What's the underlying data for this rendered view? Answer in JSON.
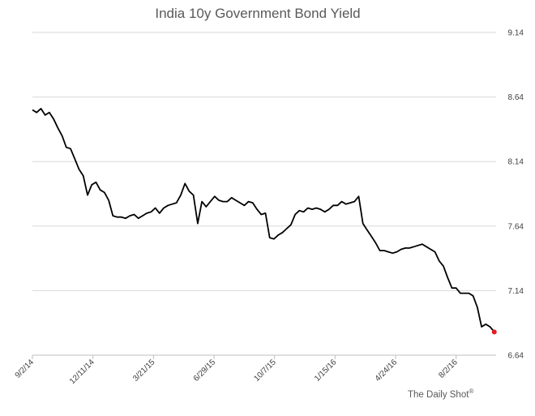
{
  "chart_data": {
    "type": "line",
    "title": "India 10y Government Bond Yield",
    "xlabel": "",
    "ylabel": "",
    "y_ticks": [
      "6.64",
      "7.14",
      "7.64",
      "8.14",
      "8.64",
      "9.14"
    ],
    "ylim": [
      6.64,
      9.14
    ],
    "y_axis_side": "right",
    "x_ticks": [
      "9/2/14",
      "12/11/14",
      "3/21/15",
      "6/29/15",
      "10/7/15",
      "1/15/16",
      "4/24/16",
      "8/2/16"
    ],
    "xlim": [
      "2014-09-02",
      "2016-10-07"
    ],
    "grid": true,
    "legend": "none",
    "series": [
      {
        "color": "#000000",
        "points": [
          [
            "2014-09-02",
            8.54
          ],
          [
            "2014-09-09",
            8.52
          ],
          [
            "2014-09-16",
            8.55
          ],
          [
            "2014-09-23",
            8.5
          ],
          [
            "2014-09-30",
            8.52
          ],
          [
            "2014-10-07",
            8.47
          ],
          [
            "2014-10-14",
            8.4
          ],
          [
            "2014-10-21",
            8.34
          ],
          [
            "2014-10-28",
            8.25
          ],
          [
            "2014-11-04",
            8.24
          ],
          [
            "2014-11-11",
            8.16
          ],
          [
            "2014-11-18",
            8.08
          ],
          [
            "2014-11-25",
            8.03
          ],
          [
            "2014-12-02",
            7.88
          ],
          [
            "2014-12-09",
            7.96
          ],
          [
            "2014-12-16",
            7.98
          ],
          [
            "2014-12-23",
            7.92
          ],
          [
            "2014-12-30",
            7.9
          ],
          [
            "2015-01-06",
            7.84
          ],
          [
            "2015-01-13",
            7.72
          ],
          [
            "2015-01-20",
            7.71
          ],
          [
            "2015-01-27",
            7.71
          ],
          [
            "2015-02-03",
            7.7
          ],
          [
            "2015-02-10",
            7.72
          ],
          [
            "2015-02-17",
            7.73
          ],
          [
            "2015-02-24",
            7.7
          ],
          [
            "2015-03-03",
            7.72
          ],
          [
            "2015-03-10",
            7.74
          ],
          [
            "2015-03-17",
            7.75
          ],
          [
            "2015-03-24",
            7.78
          ],
          [
            "2015-03-31",
            7.74
          ],
          [
            "2015-04-07",
            7.78
          ],
          [
            "2015-04-14",
            7.8
          ],
          [
            "2015-04-21",
            7.81
          ],
          [
            "2015-04-28",
            7.82
          ],
          [
            "2015-05-05",
            7.88
          ],
          [
            "2015-05-12",
            7.97
          ],
          [
            "2015-05-19",
            7.91
          ],
          [
            "2015-05-26",
            7.88
          ],
          [
            "2015-06-02",
            7.66
          ],
          [
            "2015-06-09",
            7.83
          ],
          [
            "2015-06-16",
            7.79
          ],
          [
            "2015-06-23",
            7.83
          ],
          [
            "2015-06-30",
            7.87
          ],
          [
            "2015-07-07",
            7.84
          ],
          [
            "2015-07-14",
            7.83
          ],
          [
            "2015-07-21",
            7.83
          ],
          [
            "2015-07-28",
            7.86
          ],
          [
            "2015-08-04",
            7.84
          ],
          [
            "2015-08-11",
            7.82
          ],
          [
            "2015-08-18",
            7.8
          ],
          [
            "2015-08-25",
            7.83
          ],
          [
            "2015-09-01",
            7.82
          ],
          [
            "2015-09-08",
            7.77
          ],
          [
            "2015-09-15",
            7.73
          ],
          [
            "2015-09-22",
            7.74
          ],
          [
            "2015-09-29",
            7.55
          ],
          [
            "2015-10-06",
            7.54
          ],
          [
            "2015-10-13",
            7.57
          ],
          [
            "2015-10-20",
            7.59
          ],
          [
            "2015-10-27",
            7.62
          ],
          [
            "2015-11-03",
            7.65
          ],
          [
            "2015-11-10",
            7.73
          ],
          [
            "2015-11-17",
            7.76
          ],
          [
            "2015-11-24",
            7.75
          ],
          [
            "2015-12-01",
            7.78
          ],
          [
            "2015-12-08",
            7.77
          ],
          [
            "2015-12-15",
            7.78
          ],
          [
            "2015-12-22",
            7.77
          ],
          [
            "2015-12-29",
            7.75
          ],
          [
            "2016-01-05",
            7.77
          ],
          [
            "2016-01-12",
            7.8
          ],
          [
            "2016-01-19",
            7.8
          ],
          [
            "2016-01-26",
            7.83
          ],
          [
            "2016-02-02",
            7.81
          ],
          [
            "2016-02-09",
            7.82
          ],
          [
            "2016-02-16",
            7.83
          ],
          [
            "2016-02-23",
            7.87
          ],
          [
            "2016-03-01",
            7.66
          ],
          [
            "2016-03-08",
            7.61
          ],
          [
            "2016-03-15",
            7.56
          ],
          [
            "2016-03-22",
            7.51
          ],
          [
            "2016-03-29",
            7.45
          ],
          [
            "2016-04-05",
            7.45
          ],
          [
            "2016-04-12",
            7.44
          ],
          [
            "2016-04-19",
            7.43
          ],
          [
            "2016-04-26",
            7.44
          ],
          [
            "2016-05-03",
            7.46
          ],
          [
            "2016-05-10",
            7.47
          ],
          [
            "2016-05-17",
            7.47
          ],
          [
            "2016-05-24",
            7.48
          ],
          [
            "2016-05-31",
            7.49
          ],
          [
            "2016-06-07",
            7.5
          ],
          [
            "2016-06-14",
            7.48
          ],
          [
            "2016-06-21",
            7.46
          ],
          [
            "2016-06-28",
            7.44
          ],
          [
            "2016-07-05",
            7.37
          ],
          [
            "2016-07-12",
            7.33
          ],
          [
            "2016-07-19",
            7.24
          ],
          [
            "2016-07-26",
            7.16
          ],
          [
            "2016-08-02",
            7.16
          ],
          [
            "2016-08-09",
            7.12
          ],
          [
            "2016-08-16",
            7.12
          ],
          [
            "2016-08-23",
            7.12
          ],
          [
            "2016-08-30",
            7.1
          ],
          [
            "2016-09-06",
            7.01
          ],
          [
            "2016-09-13",
            6.86
          ],
          [
            "2016-09-20",
            6.88
          ],
          [
            "2016-09-27",
            6.86
          ],
          [
            "2016-10-04",
            6.82
          ]
        ]
      }
    ],
    "last_point_color": "#e8191f"
  },
  "credit": {
    "text": "The Daily Shot",
    "mark": "®"
  }
}
